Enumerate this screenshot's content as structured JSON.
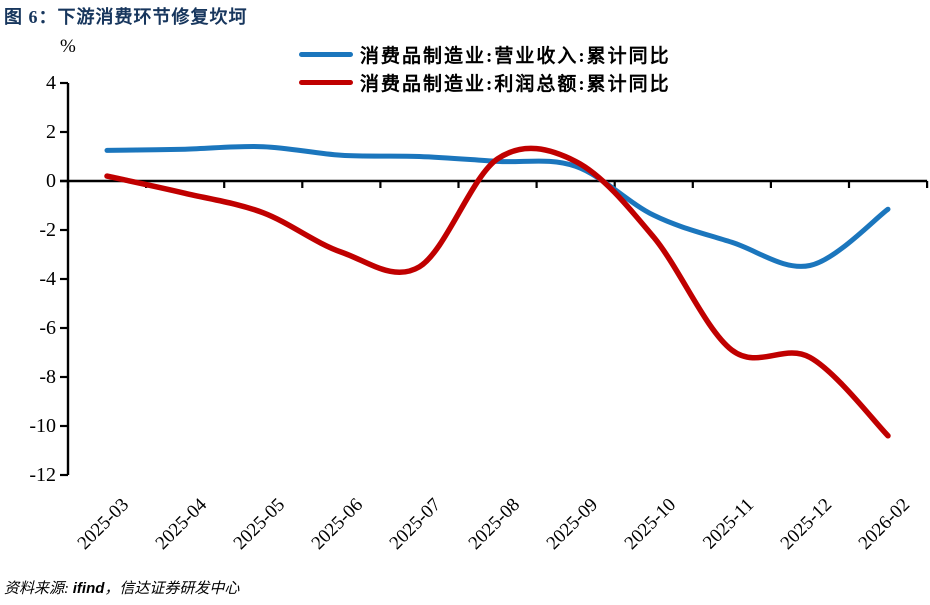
{
  "header": {
    "title": "图 6：下游消费环节修复坎坷"
  },
  "chart_data": {
    "type": "line",
    "title": "图 6：下游消费环节修复坎坷",
    "unit_label": "%",
    "smooth": true,
    "grid": false,
    "legend_position": "top",
    "ylim": [
      -12,
      4
    ],
    "yticks": [
      4,
      2,
      0,
      -2,
      -4,
      -6,
      -8,
      -10,
      -12
    ],
    "categories": [
      "2025-03",
      "2025-04",
      "2025-05",
      "2025-06",
      "2025-07",
      "2025-08",
      "2025-09",
      "2025-10",
      "2025-11",
      "2025-12",
      "2026-02"
    ],
    "series": [
      {
        "key": "revenue",
        "name": "消费品制造业:营业收入:累计同比",
        "color": "#1B76BD",
        "values": [
          1.25,
          1.3,
          1.4,
          1.05,
          1.0,
          0.8,
          0.6,
          -1.4,
          -2.5,
          -3.45,
          -1.15
        ]
      },
      {
        "key": "profit",
        "name": "消费品制造业:利润总额:累计同比",
        "color": "#C00000",
        "values": [
          0.2,
          -0.5,
          -1.3,
          -2.9,
          -3.5,
          0.9,
          0.8,
          -2.3,
          -6.9,
          -7.2,
          -10.4
        ]
      }
    ]
  },
  "footer": {
    "source_prefix": "资料来源: ",
    "source_vendor": "ifind",
    "source_suffix": "，信达证券研发中心"
  }
}
